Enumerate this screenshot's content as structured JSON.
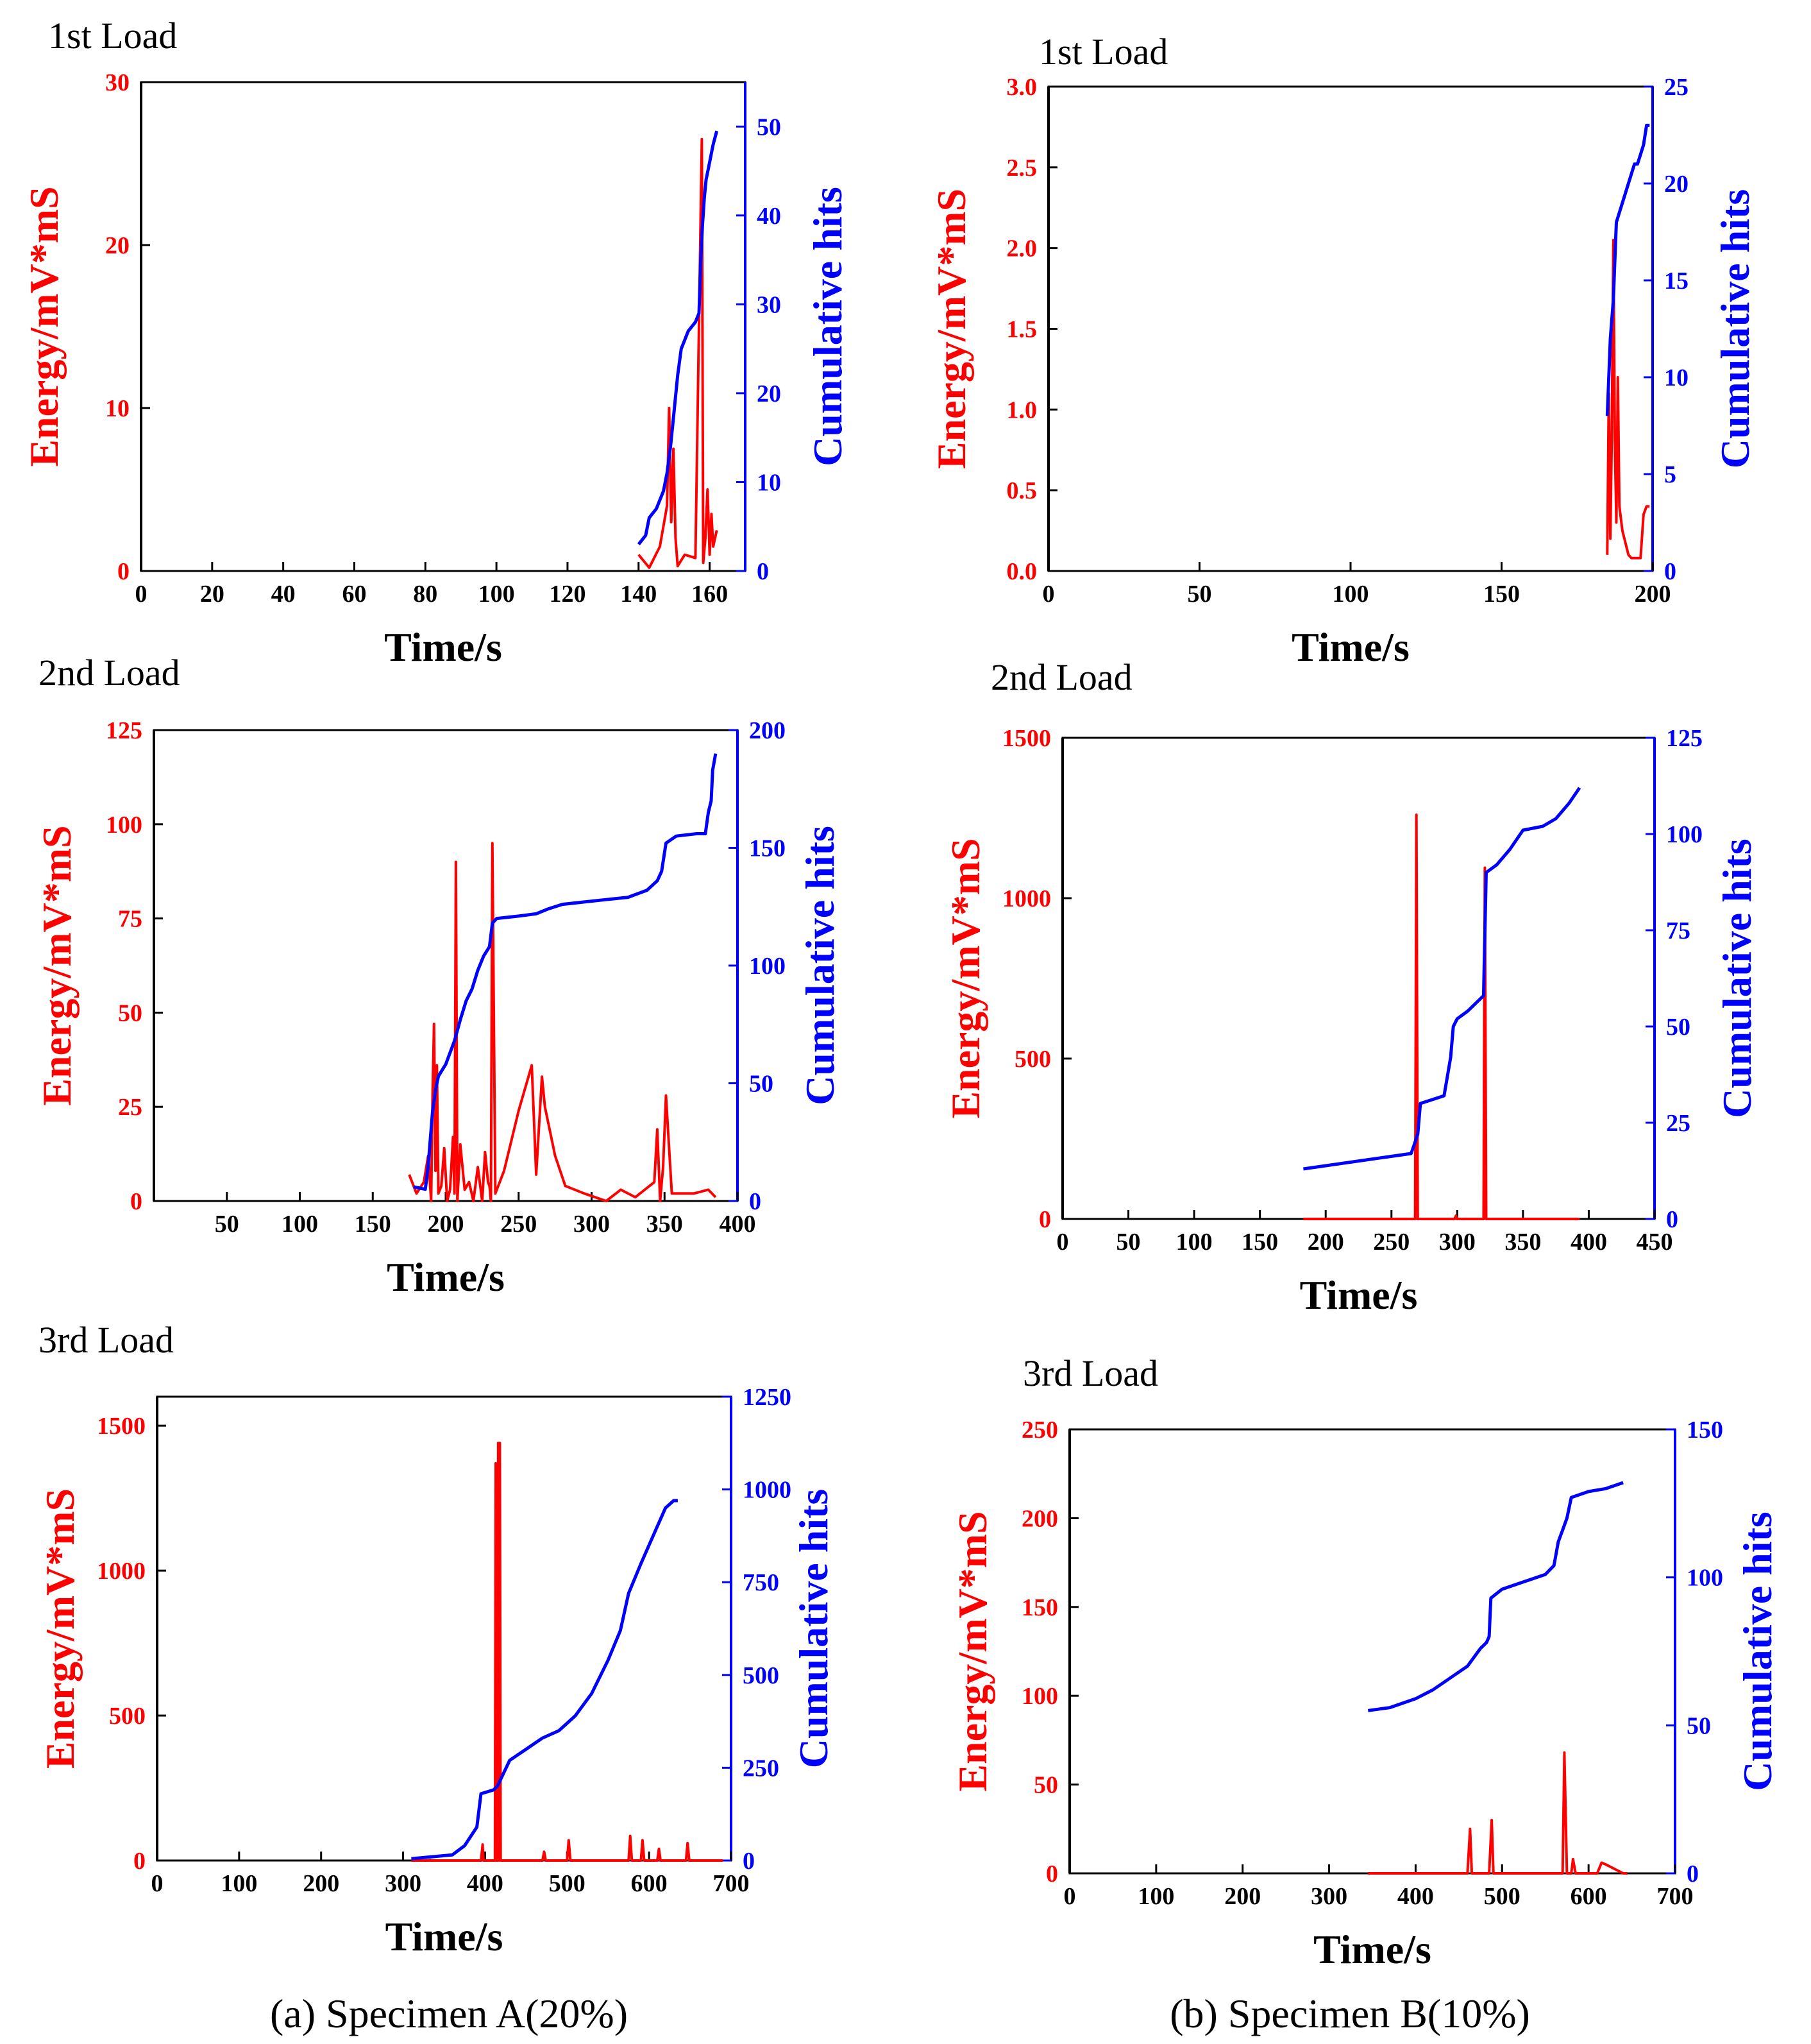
{
  "figure": {
    "caption_a": "(a) Specimen A(20%)",
    "caption_b": "(b) Specimen B(10%)"
  },
  "colors": {
    "energy": "#ff0000",
    "hits": "#0000ff",
    "axis": "#000000"
  },
  "chart_data": [
    {
      "id": "a1",
      "type": "line",
      "title": "1st Load",
      "xlabel": "Time/s",
      "ylabel": "Energy/mV*mS",
      "y2label": "Cumulative hits",
      "xlim": [
        0,
        170
      ],
      "ylim": [
        0,
        30
      ],
      "y2lim": [
        0,
        55
      ],
      "xticks": [
        0,
        20,
        40,
        60,
        80,
        100,
        120,
        140,
        160
      ],
      "yticks": [
        0,
        10,
        20,
        30
      ],
      "y2ticks": [
        0,
        10,
        20,
        30,
        40,
        50
      ],
      "series": [
        {
          "name": "Energy",
          "axis": "left",
          "x": [
            140,
            143,
            146,
            148,
            148.6,
            149.2,
            149.8,
            150.4,
            151,
            153,
            156,
            157.8,
            158.2,
            158.8,
            159.4,
            160,
            160.5,
            161,
            162
          ],
          "y": [
            1,
            0.2,
            1.5,
            4,
            10,
            3,
            7.5,
            2,
            0.3,
            1,
            0.8,
            26.5,
            0.5,
            2,
            5,
            1,
            3.5,
            1.5,
            2.5
          ]
        },
        {
          "name": "Cumulative hits",
          "axis": "right",
          "x": [
            140,
            142,
            143,
            145,
            147,
            148,
            149,
            150,
            151,
            152,
            153,
            154,
            156,
            157,
            157.5,
            158,
            158.5,
            159,
            160,
            161,
            162
          ],
          "y": [
            3,
            4,
            6,
            7,
            9,
            11,
            14,
            18,
            22,
            25,
            26,
            27,
            28,
            29,
            35,
            39,
            42,
            44,
            46,
            48,
            49.5
          ]
        }
      ]
    },
    {
      "id": "b1",
      "type": "line",
      "title": "1st Load",
      "xlabel": "Time/s",
      "ylabel": "Energy/mV*mS",
      "y2label": "Cumulative hits",
      "xlim": [
        0,
        200
      ],
      "ylim": [
        0,
        3.0
      ],
      "y2lim": [
        0,
        25
      ],
      "xticks": [
        0,
        50,
        100,
        150,
        200
      ],
      "yticks": [
        "0.0",
        "0.5",
        "1.0",
        "1.5",
        "2.0",
        "2.5",
        "3.0"
      ],
      "y2ticks": [
        0,
        5,
        10,
        15,
        20,
        25
      ],
      "series": [
        {
          "name": "Energy",
          "axis": "left",
          "x": [
            185,
            185.5,
            186,
            186.5,
            187,
            187.5,
            188,
            188.5,
            189,
            190,
            192,
            193,
            195,
            196,
            197,
            198,
            199
          ],
          "y": [
            0.1,
            1.1,
            0.2,
            0.85,
            2.05,
            0.8,
            0.3,
            1.2,
            0.4,
            0.25,
            0.1,
            0.08,
            0.08,
            0.08,
            0.35,
            0.4,
            0.4
          ]
        },
        {
          "name": "Cumulative hits",
          "axis": "right",
          "x": [
            185,
            185.5,
            186,
            187,
            187.5,
            188,
            189,
            190,
            191,
            192,
            193,
            194,
            195,
            196,
            197,
            198,
            199
          ],
          "y": [
            8,
            10,
            12,
            14,
            16,
            18,
            18.5,
            19,
            19.5,
            20,
            20.5,
            21,
            21,
            21.5,
            22,
            23,
            23
          ]
        }
      ]
    },
    {
      "id": "a2",
      "type": "line",
      "title": "2nd Load",
      "xlabel": "Time/s",
      "ylabel": "Energy/mV*mS",
      "y2label": "Cumulative hits",
      "xlim": [
        0,
        400
      ],
      "ylim": [
        0,
        125
      ],
      "y2lim": [
        0,
        200
      ],
      "xticks": [
        50,
        100,
        150,
        200,
        250,
        300,
        350,
        400
      ],
      "yticks": [
        0,
        25,
        50,
        75,
        100,
        125
      ],
      "y2ticks": [
        0,
        50,
        100,
        150,
        200
      ],
      "series": [
        {
          "name": "Energy",
          "axis": "left",
          "x": [
            175,
            180,
            185,
            188,
            190,
            191,
            192,
            193,
            194,
            195,
            197,
            199,
            201,
            203,
            205,
            206,
            207,
            208,
            210,
            213,
            216,
            219,
            222,
            225,
            227,
            229,
            230,
            231,
            232,
            234,
            240,
            250,
            259,
            262,
            266,
            268,
            275,
            282,
            295,
            310,
            320,
            330,
            343,
            345,
            347,
            349,
            351,
            355,
            370,
            380,
            385
          ],
          "y": [
            7,
            2,
            5,
            12,
            0,
            28,
            47,
            8,
            36,
            2,
            4,
            14,
            0,
            3,
            17,
            2,
            90,
            0,
            15,
            3,
            5,
            0,
            9,
            0,
            13,
            5,
            4,
            0,
            95,
            2,
            8,
            24,
            36,
            7,
            33,
            25,
            12,
            4,
            2,
            0,
            3,
            1,
            5,
            19,
            0,
            9,
            28,
            2,
            2,
            3,
            1
          ]
        },
        {
          "name": "Cumulative hits",
          "axis": "right",
          "x": [
            178,
            186,
            188,
            191,
            193,
            195,
            200,
            206,
            210,
            214,
            218,
            222,
            226,
            230,
            232,
            235,
            250,
            262,
            270,
            280,
            295,
            310,
            325,
            338,
            345,
            348,
            351,
            358,
            372,
            378,
            380,
            382,
            383,
            385
          ],
          "y": [
            6,
            5,
            15,
            38,
            47,
            53,
            58,
            68,
            77,
            85,
            90,
            98,
            104,
            108,
            118,
            120,
            121,
            122,
            124,
            126,
            127,
            128,
            129,
            132,
            136,
            140,
            152,
            155,
            156,
            156,
            165,
            170,
            183,
            190
          ]
        }
      ]
    },
    {
      "id": "b2",
      "type": "line",
      "title": "2nd Load",
      "xlabel": "Time/s",
      "ylabel": "Energy/mV*mS",
      "y2label": "Cumulative hits",
      "xlim": [
        0,
        450
      ],
      "ylim": [
        0,
        1500
      ],
      "y2lim": [
        0,
        125
      ],
      "xticks": [
        0,
        50,
        100,
        150,
        200,
        250,
        300,
        350,
        400,
        450
      ],
      "yticks": [
        0,
        500,
        1000,
        1500
      ],
      "y2ticks": [
        0,
        25,
        50,
        75,
        100,
        125
      ],
      "series": [
        {
          "name": "Energy",
          "axis": "left",
          "x": [
            183,
            268,
            269,
            270,
            298,
            299,
            300,
            320,
            321,
            322,
            393
          ],
          "y": [
            0,
            0,
            1260,
            0,
            0,
            10,
            0,
            0,
            1095,
            0,
            0
          ]
        },
        {
          "name": "Cumulative hits",
          "axis": "right",
          "x": [
            183,
            265,
            270,
            272,
            290,
            295,
            297,
            300,
            308,
            314,
            320,
            322,
            330,
            340,
            350,
            365,
            375,
            385,
            393
          ],
          "y": [
            13,
            17,
            22,
            30,
            32,
            42,
            50,
            52,
            54,
            56,
            58,
            90,
            92,
            96,
            101,
            102,
            104,
            108,
            112
          ]
        }
      ]
    },
    {
      "id": "a3",
      "type": "line",
      "title": "3rd Load",
      "xlabel": "Time/s",
      "ylabel": "Energy/mV*mS",
      "y2label": "Cumulative hits",
      "xlim": [
        0,
        700
      ],
      "ylim": [
        0,
        1600
      ],
      "y2lim": [
        0,
        1250
      ],
      "xticks": [
        0,
        100,
        200,
        300,
        400,
        500,
        600,
        700
      ],
      "yticks": [
        0,
        500,
        1000,
        1500
      ],
      "y2ticks": [
        0,
        250,
        500,
        750,
        1000,
        1250
      ],
      "series": [
        {
          "name": "Energy",
          "axis": "left",
          "x": [
            310,
            395,
            397,
            398,
            412,
            413,
            414,
            415,
            416,
            417,
            418,
            419,
            470,
            472,
            474,
            500,
            502,
            504,
            575,
            577,
            579,
            590,
            592,
            594,
            610,
            612,
            614,
            645,
            647,
            649,
            690
          ],
          "y": [
            0,
            0,
            55,
            0,
            0,
            1370,
            0,
            0,
            1440,
            0,
            1440,
            0,
            0,
            30,
            0,
            0,
            70,
            0,
            0,
            85,
            0,
            0,
            70,
            0,
            0,
            40,
            0,
            0,
            60,
            0,
            0
          ]
        },
        {
          "name": "Cumulative hits",
          "axis": "right",
          "x": [
            310,
            360,
            375,
            390,
            395,
            410,
            415,
            430,
            450,
            470,
            490,
            510,
            530,
            550,
            565,
            575,
            590,
            600,
            610,
            620,
            630,
            635
          ],
          "y": [
            5,
            15,
            40,
            90,
            180,
            190,
            200,
            270,
            300,
            330,
            350,
            390,
            450,
            540,
            620,
            720,
            800,
            850,
            900,
            950,
            970,
            970
          ]
        }
      ]
    },
    {
      "id": "b3",
      "type": "line",
      "title": "3rd Load",
      "xlabel": "Time/s",
      "ylabel": "Energy/mV*mS",
      "y2label": "Cumulative hits",
      "xlim": [
        0,
        700
      ],
      "ylim": [
        0,
        250
      ],
      "y2lim": [
        0,
        150
      ],
      "xticks": [
        0,
        100,
        200,
        300,
        400,
        500,
        600,
        700
      ],
      "yticks": [
        0,
        50,
        100,
        150,
        200,
        250
      ],
      "y2ticks": [
        0,
        50,
        100,
        150
      ],
      "series": [
        {
          "name": "Energy",
          "axis": "left",
          "x": [
            345,
            460,
            463,
            465,
            485,
            488,
            490,
            570,
            572,
            575,
            580,
            582,
            585,
            610,
            615,
            620,
            640,
            645
          ],
          "y": [
            0,
            0,
            25,
            0,
            0,
            30,
            0,
            0,
            68,
            0,
            0,
            8,
            0,
            0,
            6,
            5,
            0,
            0
          ]
        },
        {
          "name": "Cumulative hits",
          "axis": "right",
          "x": [
            345,
            370,
            400,
            420,
            440,
            460,
            470,
            475,
            482,
            485,
            487,
            500,
            520,
            540,
            550,
            560,
            565,
            570,
            575,
            580,
            600,
            620,
            640
          ],
          "y": [
            55,
            56,
            59,
            62,
            66,
            70,
            74,
            76,
            78,
            80,
            93,
            96,
            98,
            100,
            101,
            104,
            112,
            116,
            120,
            127,
            129,
            130,
            132
          ]
        }
      ]
    }
  ]
}
